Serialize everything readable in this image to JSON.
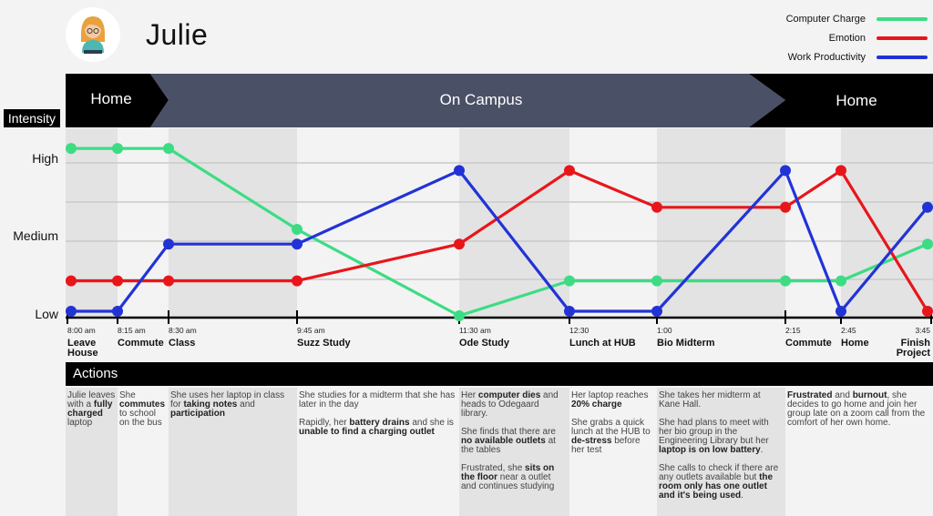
{
  "persona": {
    "name": "Julie",
    "avatar_icon": "woman-avatar-icon"
  },
  "legend": [
    {
      "label": "Computer Charge",
      "color": "#3ddc84"
    },
    {
      "label": "Emotion",
      "color": "#e8161b"
    },
    {
      "label": "Work Productivity",
      "color": "#2233d6"
    }
  ],
  "phases": [
    {
      "label": "Home"
    },
    {
      "label": "On Campus"
    },
    {
      "label": "Home"
    }
  ],
  "intensity_label": "Intensity",
  "actions_label": "Actions",
  "chart_data": {
    "type": "line",
    "title": "Julie",
    "ylabel": "Intensity",
    "ylim": [
      0,
      5
    ],
    "y_ticks": [
      {
        "value": 0,
        "label": "Low"
      },
      {
        "value": 2,
        "label": "Medium"
      },
      {
        "value": 4,
        "label": "High"
      }
    ],
    "x": [
      {
        "time": "8:00 am",
        "label": "Leave House"
      },
      {
        "time": "8:15 am",
        "label": "Commute"
      },
      {
        "time": "8:30 am",
        "label": "Class"
      },
      {
        "time": "9:45 am",
        "label": "Suzz Study"
      },
      {
        "time": "11:30 am",
        "label": "Ode Study"
      },
      {
        "time": "12:30",
        "label": "Lunch at HUB"
      },
      {
        "time": "1:00",
        "label": "Bio Midterm"
      },
      {
        "time": "2:15",
        "label": "Commute"
      },
      {
        "time": "2:45",
        "label": "Home"
      },
      {
        "time": "3:45",
        "label": "Finish Project"
      }
    ],
    "series": [
      {
        "name": "Computer Charge",
        "color": "#3ddc84",
        "values": [
          4.6,
          4.6,
          4.6,
          2.4,
          0.05,
          1.0,
          1.0,
          1.0,
          1.0,
          2.0
        ]
      },
      {
        "name": "Emotion",
        "color": "#e8161b",
        "values": [
          1.0,
          1.0,
          1.0,
          1.0,
          2.0,
          4.0,
          3.0,
          3.0,
          4.0,
          0.0
        ]
      },
      {
        "name": "Work Productivity",
        "color": "#2233d6",
        "values": [
          0.0,
          0.0,
          2.0,
          2.0,
          4.0,
          0.0,
          0.0,
          4.0,
          0.0,
          3.0
        ]
      }
    ]
  },
  "actions": [
    {
      "paragraphs": [
        [
          [
            "Julie leaves with a ",
            false
          ],
          [
            "fully charged",
            true
          ],
          [
            " laptop",
            false
          ]
        ]
      ]
    },
    {
      "paragraphs": [
        [
          [
            "She ",
            false
          ],
          [
            "commutes",
            true
          ],
          [
            " to school on the bus",
            false
          ]
        ]
      ]
    },
    {
      "paragraphs": [
        [
          [
            "She uses her laptop in class for ",
            false
          ],
          [
            "taking notes",
            true
          ],
          [
            " and ",
            false
          ],
          [
            "participation",
            true
          ]
        ]
      ]
    },
    {
      "paragraphs": [
        [
          [
            "She studies for a midterm that she has later in the day",
            false
          ]
        ],
        [
          [
            "Rapidly, her ",
            false
          ],
          [
            "battery drains",
            true
          ],
          [
            " and she is ",
            false
          ],
          [
            "unable to find a charging outlet",
            true
          ]
        ]
      ]
    },
    {
      "paragraphs": [
        [
          [
            "Her ",
            false
          ],
          [
            "computer dies",
            true
          ],
          [
            " and heads to Odegaard library.",
            false
          ]
        ],
        [
          [
            "She finds that there are ",
            false
          ],
          [
            "no available outlets",
            true
          ],
          [
            " at the tables",
            false
          ]
        ],
        [
          [
            "Frustrated, she ",
            false
          ],
          [
            "sits on the floor",
            true
          ],
          [
            " near a outlet and continues studying",
            false
          ]
        ]
      ]
    },
    {
      "paragraphs": [
        [
          [
            "Her laptop reaches ",
            false
          ],
          [
            "20% charge",
            true
          ]
        ],
        [
          [
            "She grabs a quick lunch at the HUB to ",
            false
          ],
          [
            "de-stress",
            true
          ],
          [
            " before her test",
            false
          ]
        ]
      ]
    },
    {
      "paragraphs": [
        [
          [
            "She takes her midterm at Kane Hall.",
            false
          ]
        ],
        [
          [
            "She had plans to meet with her bio group in the Engineering Library but her ",
            false
          ],
          [
            "laptop is on low battery",
            true
          ],
          [
            ".",
            false
          ]
        ],
        [
          [
            "She calls to check if there are any outlets available but ",
            false
          ],
          [
            "the room only has one outlet and it's being used",
            true
          ],
          [
            ".",
            false
          ]
        ]
      ]
    },
    {
      "paragraphs": [
        [
          [
            "Frustrated",
            true
          ],
          [
            " and ",
            false
          ],
          [
            "burnout",
            true
          ],
          [
            ", she decides to go home and join her group late on a zoom call from the comfort of her own home.",
            false
          ]
        ]
      ]
    }
  ]
}
